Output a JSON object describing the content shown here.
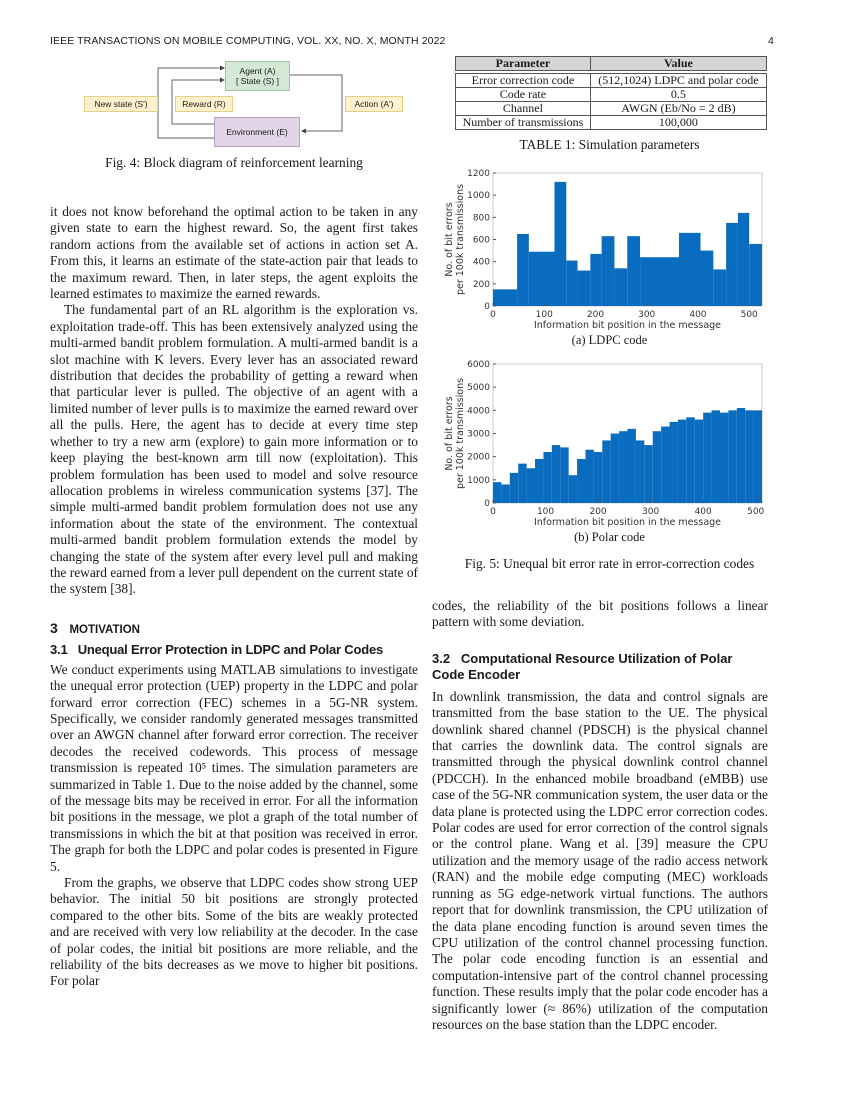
{
  "header": {
    "journal": "IEEE TRANSACTIONS ON MOBILE COMPUTING, VOL. XX, NO. X, MONTH 2022",
    "page_number": "4"
  },
  "fig4": {
    "agent_line1": "Agent (A)",
    "agent_line2": "[ State (S) ]",
    "new_state": "New state (S')",
    "reward": "Reward (R)",
    "action": "Action (A')",
    "environment": "Environment (E)",
    "caption": "Fig. 4: Block diagram of reinforcement learning",
    "colors": {
      "agent": "#d5e8d4",
      "environment": "#e1d5e7",
      "label": "#fff2cc"
    }
  },
  "table1": {
    "headers": [
      "Parameter",
      "Value"
    ],
    "rows": [
      [
        "Error correction code",
        "(512,1024) LDPC and polar code"
      ],
      [
        "Code rate",
        "0.5"
      ],
      [
        "Channel",
        "AWGN (Eb/No = 2 dB)"
      ],
      [
        "Number of transmissions",
        "100,000"
      ]
    ],
    "caption": "TABLE 1: Simulation parameters"
  },
  "chart_data": [
    {
      "type": "bar",
      "subcaption": "(a) LDPC code",
      "xlabel": "Information bit position in the message",
      "ylabel": [
        "No. of bit errors",
        "per 100k transmissions"
      ],
      "xlim": [
        0,
        525
      ],
      "ylim": [
        0,
        1200
      ],
      "xticks": [
        0,
        100,
        200,
        300,
        400,
        500
      ],
      "yticks": [
        0,
        200,
        400,
        600,
        800,
        1000,
        1200
      ],
      "color": "#0a6cbf",
      "segments": [
        {
          "from": 0,
          "to": 47,
          "value": 150
        },
        {
          "from": 47,
          "to": 70,
          "value": 650
        },
        {
          "from": 70,
          "to": 120,
          "value": 490
        },
        {
          "from": 120,
          "to": 143,
          "value": 1120
        },
        {
          "from": 143,
          "to": 165,
          "value": 410
        },
        {
          "from": 165,
          "to": 190,
          "value": 320
        },
        {
          "from": 190,
          "to": 212,
          "value": 470
        },
        {
          "from": 212,
          "to": 237,
          "value": 630
        },
        {
          "from": 237,
          "to": 262,
          "value": 340
        },
        {
          "from": 262,
          "to": 287,
          "value": 630
        },
        {
          "from": 287,
          "to": 363,
          "value": 440
        },
        {
          "from": 363,
          "to": 405,
          "value": 660
        },
        {
          "from": 405,
          "to": 430,
          "value": 500
        },
        {
          "from": 430,
          "to": 455,
          "value": 330
        },
        {
          "from": 455,
          "to": 478,
          "value": 750
        },
        {
          "from": 478,
          "to": 500,
          "value": 840
        },
        {
          "from": 500,
          "to": 525,
          "value": 560
        }
      ]
    },
    {
      "type": "bar",
      "subcaption": "(b) Polar code",
      "xlabel": "Information bit position in the message",
      "ylabel": [
        "No. of bit errors",
        "per 100k transmissions"
      ],
      "xlim": [
        0,
        512
      ],
      "ylim": [
        0,
        6000
      ],
      "xticks": [
        0,
        100,
        200,
        300,
        400,
        500
      ],
      "yticks": [
        0,
        1000,
        2000,
        3000,
        4000,
        5000,
        6000
      ],
      "color": "#0a6cbf",
      "bin_width": 16,
      "x": [
        0,
        16,
        32,
        48,
        64,
        80,
        96,
        112,
        128,
        144,
        160,
        176,
        192,
        208,
        224,
        240,
        256,
        272,
        288,
        304,
        320,
        336,
        352,
        368,
        384,
        400,
        416,
        432,
        448,
        464,
        480,
        496
      ],
      "values": [
        900,
        800,
        1300,
        1700,
        1500,
        1900,
        2200,
        2500,
        2400,
        1200,
        1900,
        2300,
        2200,
        2700,
        3000,
        3100,
        3200,
        2700,
        2500,
        3100,
        3300,
        3500,
        3600,
        3700,
        3600,
        3900,
        4000,
        3900,
        4000,
        4100,
        4000,
        4000
      ]
    }
  ],
  "fig5": {
    "caption": "Fig. 5: Unequal bit error rate in error-correction codes"
  },
  "left": {
    "p1": "it does not know beforehand the optimal action to be taken in any given state to earn the highest reward. So, the agent first takes random actions from the available set of actions in action set A. From this, it learns an estimate of the state-action pair that leads to the maximum reward. Then, in later steps, the agent exploits the learned estimates to maximize the earned rewards.",
    "p2": "The fundamental part of an RL algorithm is the exploration vs. exploitation trade-off. This has been extensively analyzed using the multi-armed bandit problem formulation. A multi-armed bandit is a slot machine with K levers. Every lever has an associated reward distribution that decides the probability of getting a reward when that particular lever is pulled. The objective of an agent with a limited number of lever pulls is to maximize the earned reward over all the pulls. Here, the agent has to decide at every time step whether to try a new arm (explore) to gain more information or to keep playing the best-known arm till now (exploitation). This problem formulation has been used to model and solve resource allocation problems in wireless communication systems [37]. The simple multi-armed bandit problem formulation does not use any information about the state of the environment. The contextual multi-armed bandit problem formulation extends the model by changing the state of the system after every level pull and making the reward earned from a lever pull dependent on the current state of the system [38].",
    "sec3_num": "3",
    "sec3_title": "Motivation",
    "sec31": "3.1   Unequal Error Protection in LDPC and Polar Codes",
    "p3": "We conduct experiments using MATLAB simulations to investigate the unequal error protection (UEP) property in the LDPC and polar forward error correction (FEC) schemes in a 5G-NR system. Specifically, we consider randomly generated messages transmitted over an AWGN channel after forward error correction. The receiver decodes the received codewords. This process of message transmission is repeated 10⁵ times. The simulation parameters are summarized in Table 1. Due to the noise added by the channel, some of the message bits may be received in error. For all the information bit positions in the message, we plot a graph of the total number of transmissions in which the bit at that position was received in error. The graph for both the LDPC and polar codes is presented in Figure 5.",
    "p4": "From the graphs, we observe that LDPC codes show strong UEP behavior. The initial 50 bit positions are strongly protected compared to the other bits. Some of the bits are weakly protected and are received with very low reliability at the decoder. In the case of polar codes, the initial bit positions are more reliable, and the reliability of the bits decreases as we move to higher bit positions. For polar"
  },
  "right": {
    "p1": "codes, the reliability of the bit positions follows a linear pattern with some deviation.",
    "sec32": "3.2   Computational Resource Utilization of Polar Code Encoder",
    "p2": "In downlink transmission, the data and control signals are transmitted from the base station to the UE. The physical downlink shared channel (PDSCH) is the physical channel that carries the downlink data. The control signals are transmitted through the physical downlink control channel (PDCCH). In the enhanced mobile broadband (eMBB) use case of the 5G-NR communication system, the user data or the data plane is protected using the LDPC error correction codes. Polar codes are used for error correction of the control signals or the control plane. Wang et al. [39] measure the CPU utilization and the memory usage of the radio access network (RAN) and the mobile edge computing (MEC) workloads running as 5G edge-network virtual functions. The authors report that for downlink transmission, the CPU utilization of the data plane encoding function is around seven times the CPU utilization of the control channel processing function. The polar code encoding function is an essential and computation-intensive part of the control channel processing function. These results imply that the polar code encoder has a significantly lower (≈ 86%) utilization of the computation resources on the base station than the LDPC encoder."
  }
}
